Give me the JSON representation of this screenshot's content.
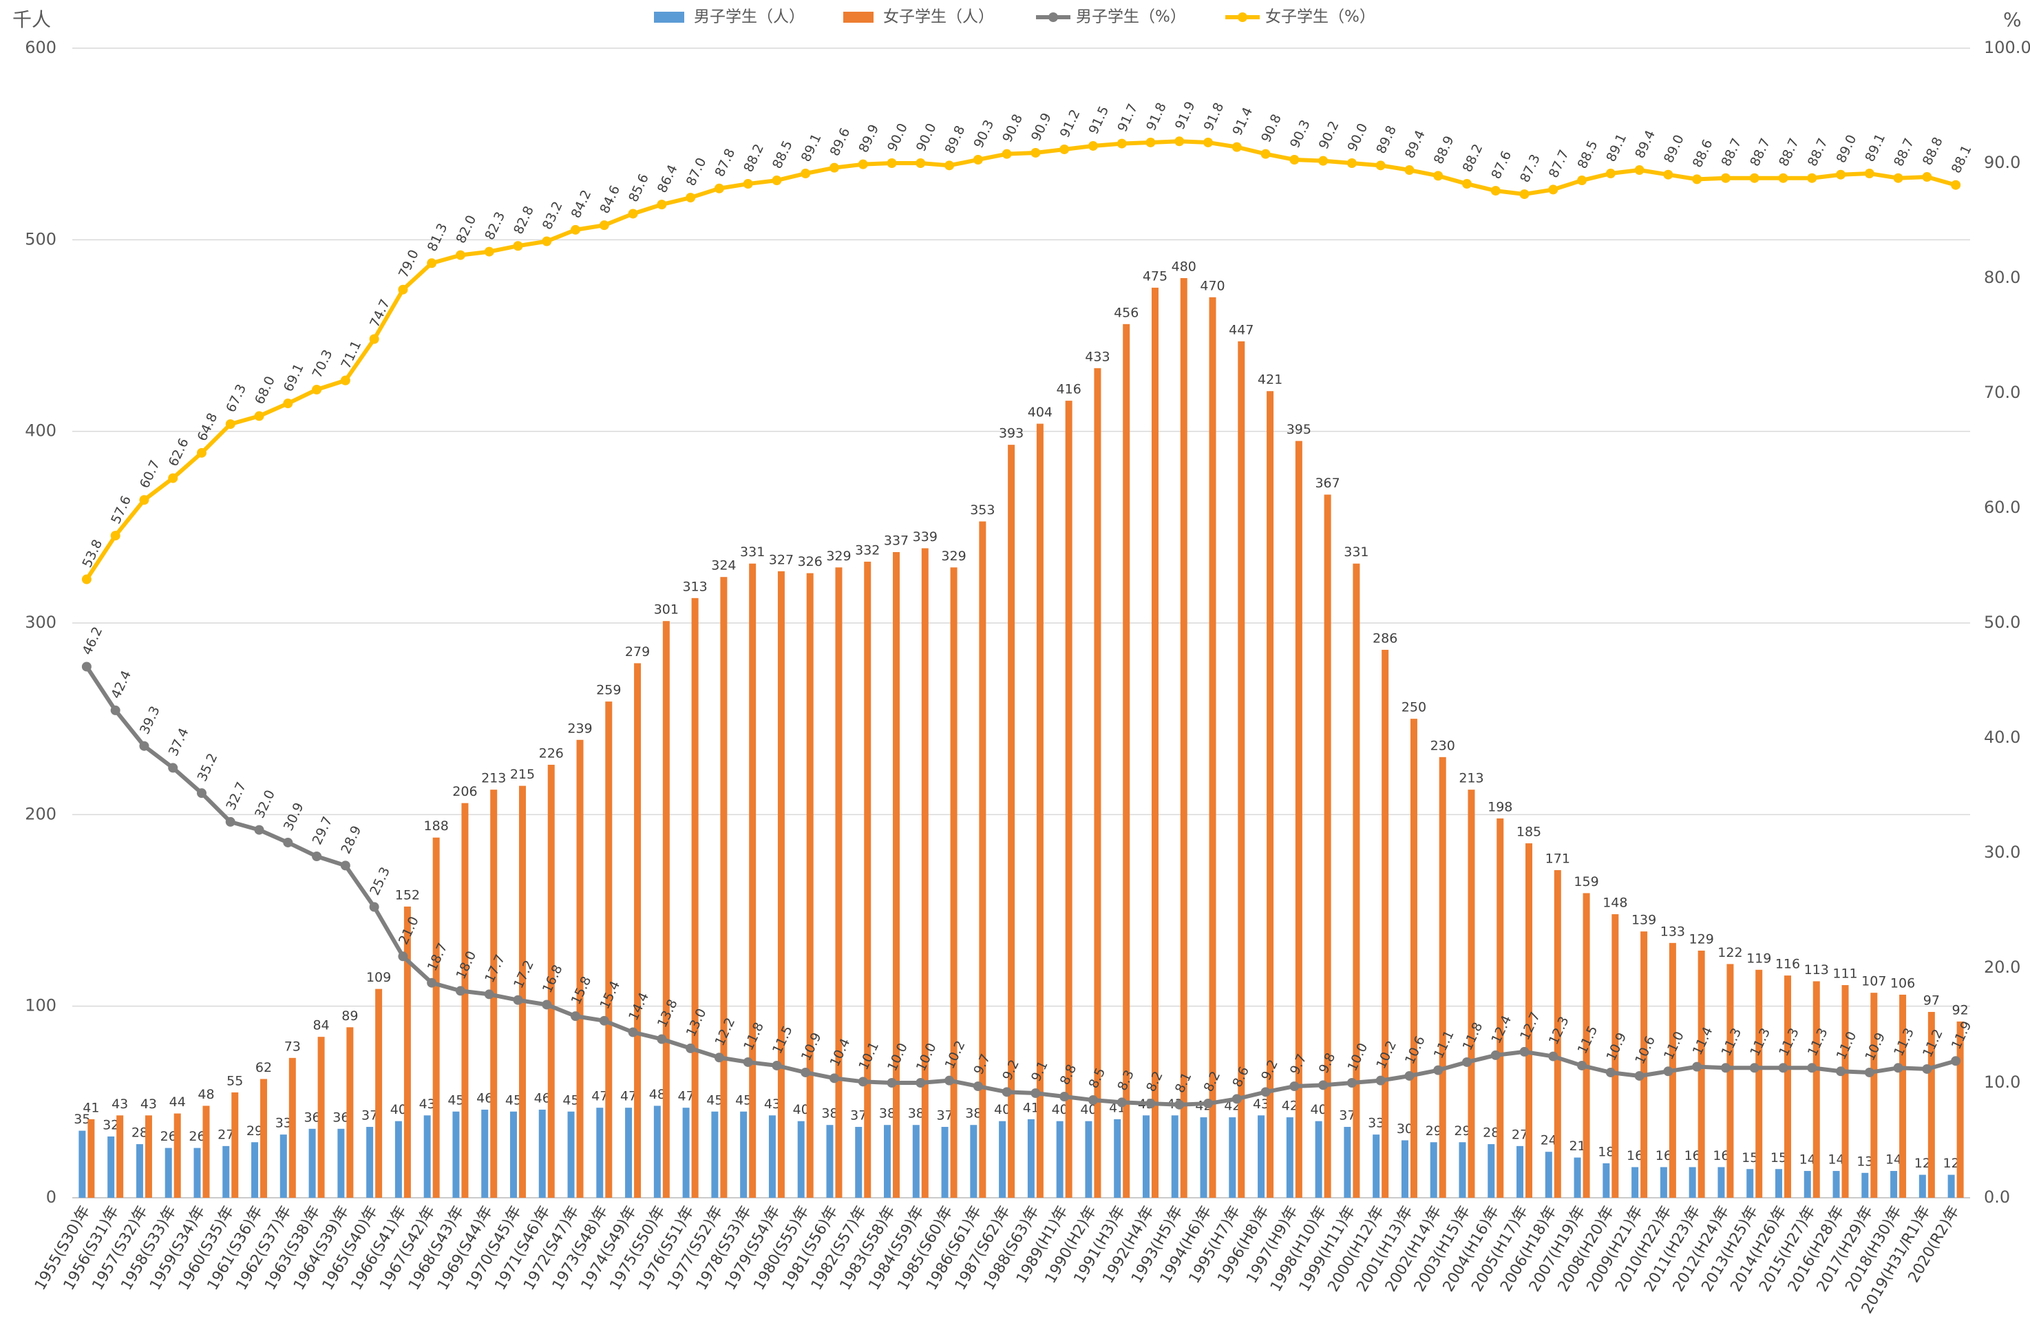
{
  "chart_data": {
    "type": "bar-line",
    "y_axis_label": "千人",
    "y2_axis_label": "%",
    "categories": [
      "1955(S30)年",
      "1956(S31)年",
      "1957(S32)年",
      "1958(S33)年",
      "1959(S34)年",
      "1960(S35)年",
      "1961(S36)年",
      "1962(S37)年",
      "1963(S38)年",
      "1964(S39)年",
      "1965(S40)年",
      "1966(S41)年",
      "1967(S42)年",
      "1968(S43)年",
      "1969(S44)年",
      "1970(S45)年",
      "1971(S46)年",
      "1972(S47)年",
      "1973(S48)年",
      "1974(S49)年",
      "1975(S50)年",
      "1976(S51)年",
      "1977(S52)年",
      "1978(S53)年",
      "1979(S54)年",
      "1980(S55)年",
      "1981(S56)年",
      "1982(S57)年",
      "1983(S58)年",
      "1984(S59)年",
      "1985(S60)年",
      "1986(S61)年",
      "1987(S62)年",
      "1988(S63)年",
      "1989(H1)年",
      "1990(H2)年",
      "1991(H3)年",
      "1992(H4)年",
      "1993(H5)年",
      "1994(H6)年",
      "1995(H7)年",
      "1996(H8)年",
      "1997(H9)年",
      "1998(H10)年",
      "1999(H11)年",
      "2000(H12)年",
      "2001(H13)年",
      "2002(H14)年",
      "2003(H15)年",
      "2004(H16)年",
      "2005(H17)年",
      "2006(H18)年",
      "2007(H19)年",
      "2008(H20)年",
      "2009(H21)年",
      "2010(H22)年",
      "2011(H23)年",
      "2012(H24)年",
      "2013(H25)年",
      "2014(H26)年",
      "2015(H27)年",
      "2016(H28)年",
      "2017(H29)年",
      "2018(H30)年",
      "2019(H31/R1)年",
      "2020(R2)年"
    ],
    "series": [
      {
        "name": "男子学生（人）",
        "type": "bar",
        "color": "#5b9bd5",
        "values": [
          35,
          32,
          28,
          26,
          26,
          27,
          29,
          33,
          36,
          36,
          37,
          40,
          43,
          45,
          46,
          45,
          46,
          45,
          47,
          47,
          48,
          47,
          45,
          45,
          43,
          40,
          38,
          37,
          38,
          38,
          37,
          38,
          40,
          41,
          40,
          40,
          41,
          43,
          43,
          42,
          42,
          43,
          42,
          40,
          37,
          33,
          30,
          29,
          29,
          28,
          27,
          24,
          21,
          18,
          16,
          16,
          16,
          16,
          15,
          15,
          14,
          14,
          13,
          14,
          12,
          12
        ]
      },
      {
        "name": "女子学生（人）",
        "type": "bar",
        "color": "#ed7d31",
        "values": [
          41,
          43,
          43,
          44,
          48,
          55,
          62,
          73,
          84,
          89,
          109,
          152,
          188,
          206,
          213,
          215,
          226,
          239,
          259,
          279,
          301,
          313,
          324,
          331,
          327,
          326,
          329,
          332,
          337,
          339,
          329,
          353,
          393,
          404,
          416,
          433,
          456,
          475,
          480,
          470,
          447,
          421,
          395,
          367,
          331,
          286,
          250,
          230,
          213,
          198,
          185,
          171,
          159,
          148,
          139,
          133,
          129,
          122,
          119,
          116,
          113,
          111,
          107,
          106,
          97,
          92
        ]
      },
      {
        "name": "男子学生（%）",
        "type": "line",
        "axis": "y2",
        "color": "#7f7f7f",
        "values": [
          46.2,
          42.4,
          39.3,
          37.4,
          35.2,
          32.7,
          32.0,
          30.9,
          29.7,
          28.9,
          25.3,
          21.0,
          18.7,
          18.0,
          17.7,
          17.2,
          16.8,
          15.8,
          15.4,
          14.4,
          13.8,
          13.0,
          12.2,
          11.8,
          11.5,
          10.9,
          10.4,
          10.1,
          10.0,
          10.0,
          10.2,
          9.7,
          9.2,
          9.1,
          8.8,
          8.5,
          8.3,
          8.2,
          8.1,
          8.2,
          8.6,
          9.2,
          9.7,
          9.8,
          10.0,
          10.2,
          10.6,
          11.1,
          11.8,
          12.4,
          12.7,
          12.3,
          11.5,
          10.9,
          10.6,
          11.0,
          11.4,
          11.3,
          11.3,
          11.3,
          11.3,
          11.0,
          10.9,
          11.3,
          11.2,
          11.9
        ],
        "value_labels": [
          "46.2",
          "42.4",
          "39.3",
          "37.4",
          "35.2",
          "32.7",
          "32.0",
          "30.9",
          "29.7",
          "28.9",
          "25.3",
          "21.0",
          "18.7",
          "18.0",
          "17.7",
          "17.2",
          "16.8",
          "15.8",
          "15.4",
          "14.4",
          "13.8",
          "13.0",
          "12.2",
          "11.8",
          "11.5",
          "10.9",
          "10.4",
          "10.1",
          "10.0",
          "10.0",
          "10.2",
          "9.7",
          "9.2",
          "9.1",
          "8.8",
          "8.5",
          "8.3",
          "8.2",
          "8.1",
          "8.2",
          "8.6",
          "9.2",
          "9.7",
          "9.8",
          "10.0",
          "10.2",
          "10.6",
          "11.1",
          "11.8",
          "12.4",
          "12.7",
          "12.3",
          "11.5",
          "10.9",
          "10.6",
          "11.0",
          "11.4",
          "11.3",
          "11.3",
          "11.3",
          "11.3",
          "11.0",
          "10.9",
          "11.3",
          "11.2",
          "11.9"
        ]
      },
      {
        "name": "女子学生（%）",
        "type": "line",
        "axis": "y2",
        "color": "#ffc000",
        "values": [
          53.8,
          57.6,
          60.7,
          62.6,
          64.8,
          67.3,
          68.0,
          69.1,
          70.3,
          71.1,
          74.7,
          79.0,
          81.3,
          82.0,
          82.3,
          82.8,
          83.2,
          84.2,
          84.6,
          85.6,
          86.4,
          87.0,
          87.8,
          88.2,
          88.5,
          89.1,
          89.6,
          89.9,
          90.0,
          90.0,
          89.8,
          90.3,
          90.8,
          90.9,
          91.2,
          91.5,
          91.7,
          91.8,
          91.9,
          91.8,
          91.4,
          90.8,
          90.3,
          90.2,
          90.0,
          89.8,
          89.4,
          88.9,
          88.2,
          87.6,
          87.3,
          87.7,
          88.5,
          89.1,
          89.4,
          89.0,
          88.6,
          88.7,
          88.7,
          88.7,
          88.7,
          89.0,
          89.1,
          88.7,
          88.8,
          88.1
        ],
        "value_labels": [
          "53.8",
          "57.6",
          "60.7",
          "62.6",
          "64.8",
          "67.3",
          "68.0",
          "69.1",
          "70.3",
          "71.1",
          "74.7",
          "79.0",
          "81.3",
          "82.0",
          "82.3",
          "82.8",
          "83.2",
          "84.2",
          "84.6",
          "85.6",
          "86.4",
          "87.0",
          "87.8",
          "88.2",
          "88.5",
          "89.1",
          "89.6",
          "89.9",
          "90.0",
          "90.0",
          "89.8",
          "90.3",
          "90.8",
          "90.9",
          "91.2",
          "91.5",
          "91.7",
          "91.8",
          "91.9",
          "91.8",
          "91.4",
          "90.8",
          "90.3",
          "90.2",
          "90.0",
          "89.8",
          "89.4",
          "88.9",
          "88.2",
          "87.6",
          "87.3",
          "87.7",
          "88.5",
          "89.1",
          "89.4",
          "89.0",
          "88.6",
          "88.7",
          "88.7",
          "88.7",
          "88.7",
          "89.0",
          "89.1",
          "88.7",
          "88.8",
          "88.1"
        ]
      }
    ],
    "ylim": [
      0,
      600
    ],
    "yticks": [
      0,
      100,
      200,
      300,
      400,
      500,
      600
    ],
    "y2lim": [
      0,
      100
    ],
    "y2ticks": [
      {
        "value": 0,
        "label": "0.0"
      },
      {
        "value": 10,
        "label": "10.0"
      },
      {
        "value": 20,
        "label": "20.0"
      },
      {
        "value": 30,
        "label": "30.0"
      },
      {
        "value": 40,
        "label": "40.0"
      },
      {
        "value": 50,
        "label": "50.0"
      },
      {
        "value": 60,
        "label": "60.0"
      },
      {
        "value": 70,
        "label": "70.0"
      },
      {
        "value": 80,
        "label": "80.0"
      },
      {
        "value": 90,
        "label": "90.0"
      },
      {
        "value": 100,
        "label": "100.0"
      }
    ],
    "grid": true,
    "legend": "top"
  }
}
